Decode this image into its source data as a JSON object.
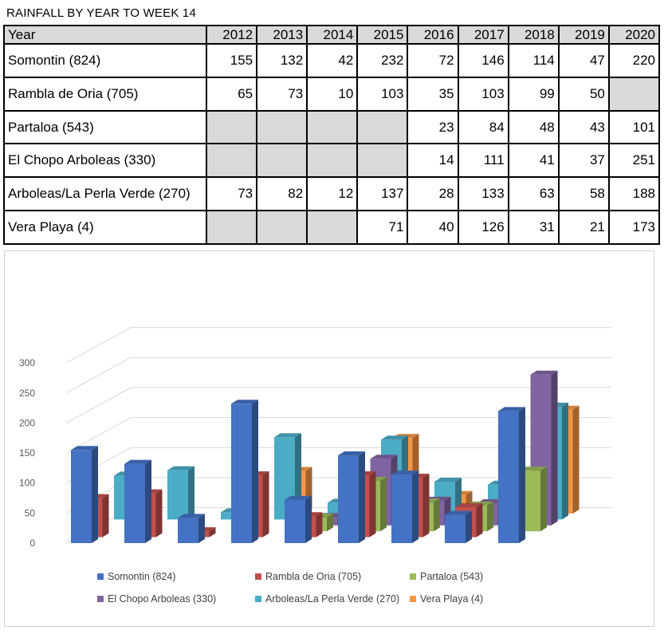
{
  "table": {
    "title": "RAINFALL BY YEAR TO WEEK 14",
    "corner_header": "Year",
    "years": [
      "2012",
      "2013",
      "2014",
      "2015",
      "2016",
      "2017",
      "2018",
      "2019",
      "2020"
    ],
    "rows": [
      {
        "station": "Somontin (824)",
        "values": [
          "155",
          "132",
          "42",
          "232",
          "72",
          "146",
          "114",
          "47",
          "220"
        ]
      },
      {
        "station": "Rambla de Oria (705)",
        "values": [
          "65",
          "73",
          "10",
          "103",
          "35",
          "103",
          "99",
          "50",
          ""
        ]
      },
      {
        "station": "Partaloa (543)",
        "values": [
          "",
          "",
          "",
          "",
          "23",
          "84",
          "48",
          "43",
          "101"
        ]
      },
      {
        "station": "El Chopo Arboleas (330)",
        "values": [
          "",
          "",
          "",
          "",
          "14",
          "111",
          "41",
          "37",
          "251"
        ]
      },
      {
        "station": "Arboleas/La Perla Verde (270)",
        "values": [
          "73",
          "82",
          "12",
          "137",
          "28",
          "133",
          "63",
          "58",
          "188"
        ]
      },
      {
        "station": "Vera Playa (4)",
        "values": [
          "",
          "",
          "",
          "71",
          "40",
          "126",
          "31",
          "21",
          "173"
        ]
      }
    ]
  },
  "chart_data": {
    "type": "bar",
    "categories": [
      "2012",
      "2013",
      "2014",
      "2015",
      "2016",
      "2017",
      "2018",
      "2019",
      "2020"
    ],
    "yticks": [
      "0",
      "50",
      "100",
      "150",
      "200",
      "250",
      "300"
    ],
    "ylim": [
      0,
      300
    ],
    "legend_position": "bottom",
    "series": [
      {
        "name": "Somontin (824)",
        "color": "#4472c4",
        "values": [
          155,
          132,
          42,
          232,
          72,
          146,
          114,
          47,
          220
        ]
      },
      {
        "name": "Rambla de Oria (705)",
        "color": "#c0504d",
        "values": [
          65,
          73,
          10,
          103,
          35,
          103,
          99,
          50,
          null
        ]
      },
      {
        "name": "Partaloa (543)",
        "color": "#9bbb59",
        "values": [
          null,
          null,
          null,
          null,
          23,
          84,
          48,
          43,
          101
        ]
      },
      {
        "name": "El Chopo Arboleas (330)",
        "color": "#8064a2",
        "values": [
          null,
          null,
          null,
          null,
          14,
          111,
          41,
          37,
          251
        ]
      },
      {
        "name": "Arboleas/La Perla Verde (270)",
        "color": "#4bacc6",
        "values": [
          73,
          82,
          12,
          137,
          28,
          133,
          63,
          58,
          188
        ]
      },
      {
        "name": "Vera Playa (4)",
        "color": "#f79646",
        "values": [
          null,
          null,
          null,
          71,
          40,
          126,
          31,
          21,
          173
        ]
      }
    ]
  }
}
